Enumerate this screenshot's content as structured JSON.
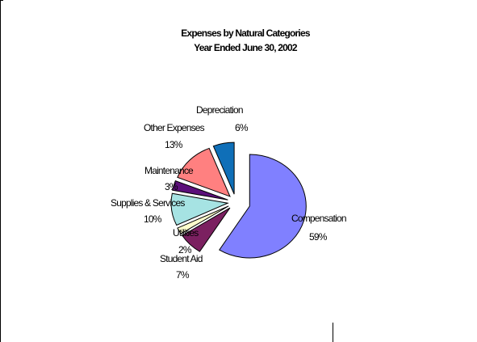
{
  "chart_data": {
    "type": "pie",
    "title": "Expenses by Natural Categories",
    "subtitle": "Year Ended June 30, 2002",
    "categories": [
      "Compensation",
      "Student Aid",
      "Utilities",
      "Supplies & Services",
      "Maintenance",
      "Other Expenses",
      "Depreciation"
    ],
    "values": [
      59,
      7,
      2,
      10,
      3,
      13,
      6
    ],
    "labels": [
      {
        "name": "Compensation",
        "value": "59%"
      },
      {
        "name": "Student Aid",
        "value": "7%"
      },
      {
        "name": "Utilities",
        "value": "2%"
      },
      {
        "name": "Supplies & Services",
        "value": "10%"
      },
      {
        "name": "Maintenance",
        "value": "3%"
      },
      {
        "name": "Other Expenses",
        "value": "13%"
      },
      {
        "name": "Depreciation",
        "value": "6%"
      }
    ],
    "colors": [
      "#8080ff",
      "#7b2060",
      "#ffffcc",
      "#a6e3e3",
      "#5c0f7a",
      "#ff8080",
      "#0f6fb8"
    ],
    "exploded": true,
    "legend": "none"
  }
}
